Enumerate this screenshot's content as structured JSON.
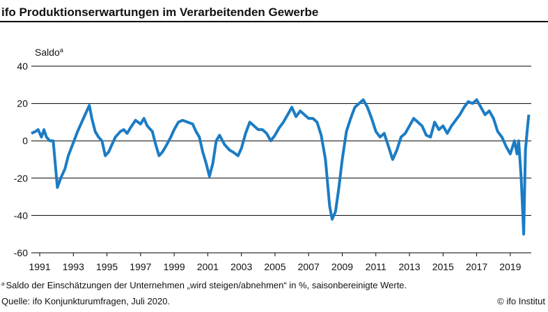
{
  "chart_data": {
    "type": "line",
    "title": "ifo Produktionserwartungen im Verarbeitenden Gewerbe",
    "y_label": "Saldo",
    "y_label_marker": "a",
    "footnote_marker": "a",
    "footnote": "Saldo der Einschätzungen der Unternehmen „wird steigen/abnehmen“ in %, saisonbereinigte Werte.",
    "source": "Quelle: ifo Konjunkturumfragen, Juli 2020.",
    "credit": "© ifo Institut",
    "xlim": [
      1991,
      2020.75
    ],
    "xticks": [
      {
        "value": 1991.5,
        "label": "1991"
      },
      {
        "value": 1993.5,
        "label": "1993"
      },
      {
        "value": 1995.5,
        "label": "1995"
      },
      {
        "value": 1997.5,
        "label": "1997"
      },
      {
        "value": 1999.5,
        "label": "1999"
      },
      {
        "value": 2001.5,
        "label": "2001"
      },
      {
        "value": 2003.5,
        "label": "2003"
      },
      {
        "value": 2005.5,
        "label": "2005"
      },
      {
        "value": 2007.5,
        "label": "2007"
      },
      {
        "value": 2009.5,
        "label": "2009"
      },
      {
        "value": 2011.5,
        "label": "2011"
      },
      {
        "value": 2013.5,
        "label": "2013"
      },
      {
        "value": 2015.5,
        "label": "2015"
      },
      {
        "value": 2017.5,
        "label": "2017"
      },
      {
        "value": 2019.5,
        "label": "2019"
      }
    ],
    "ylim": [
      -60,
      40
    ],
    "yticks": [
      40,
      20,
      0,
      -20,
      -40,
      -60
    ],
    "grid": true,
    "color": "#1b7cc4",
    "x": [
      1991.0,
      1991.25,
      1991.4,
      1991.6,
      1991.75,
      1991.9,
      1992.1,
      1992.3,
      1992.4,
      1992.55,
      1992.75,
      1993.0,
      1993.2,
      1993.5,
      1993.75,
      1994.0,
      1994.25,
      1994.45,
      1994.6,
      1994.8,
      1995.0,
      1995.2,
      1995.4,
      1995.6,
      1995.8,
      1996.0,
      1996.3,
      1996.5,
      1996.7,
      1996.9,
      1997.2,
      1997.5,
      1997.7,
      1997.9,
      1998.2,
      1998.4,
      1998.6,
      1998.8,
      1999.0,
      1999.3,
      1999.5,
      1999.75,
      2000.0,
      2000.3,
      2000.6,
      2000.8,
      2001.0,
      2001.2,
      2001.4,
      2001.6,
      2001.8,
      2002.0,
      2002.2,
      2002.5,
      2002.8,
      2003.0,
      2003.3,
      2003.5,
      2003.75,
      2004.0,
      2004.25,
      2004.5,
      2004.75,
      2005.0,
      2005.25,
      2005.5,
      2005.75,
      2006.0,
      2006.25,
      2006.5,
      2006.75,
      2007.0,
      2007.25,
      2007.5,
      2007.75,
      2008.0,
      2008.25,
      2008.5,
      2008.75,
      2008.9,
      2009.1,
      2009.3,
      2009.5,
      2009.75,
      2010.0,
      2010.25,
      2010.5,
      2010.75,
      2011.0,
      2011.25,
      2011.5,
      2011.75,
      2012.0,
      2012.25,
      2012.5,
      2012.75,
      2013.0,
      2013.25,
      2013.5,
      2013.75,
      2014.0,
      2014.25,
      2014.5,
      2014.75,
      2015.0,
      2015.25,
      2015.5,
      2015.75,
      2016.0,
      2016.25,
      2016.5,
      2016.75,
      2017.0,
      2017.25,
      2017.5,
      2017.75,
      2018.0,
      2018.25,
      2018.5,
      2018.75,
      2019.0,
      2019.25,
      2019.5,
      2019.75,
      2019.9,
      2020.0,
      2020.15,
      2020.3,
      2020.4,
      2020.5,
      2020.6
    ],
    "values": [
      4,
      5,
      6,
      2,
      6,
      2,
      0,
      0,
      -10,
      -25,
      -20,
      -15,
      -8,
      -1,
      5,
      10,
      15,
      19,
      12,
      5,
      2,
      0,
      -8,
      -6,
      -2,
      2,
      5,
      6,
      4,
      7,
      11,
      9,
      12,
      8,
      5,
      -2,
      -8,
      -6,
      -3,
      2,
      6,
      10,
      11,
      10,
      9,
      5,
      2,
      -6,
      -12,
      -19,
      -12,
      0,
      3,
      -2,
      -5,
      -6,
      -8,
      -4,
      4,
      10,
      8,
      6,
      6,
      4,
      0,
      3,
      7,
      10,
      14,
      18,
      13,
      16,
      14,
      12,
      12,
      10,
      3,
      -10,
      -35,
      -42,
      -38,
      -25,
      -10,
      5,
      12,
      18,
      20,
      22,
      18,
      12,
      5,
      2,
      4,
      -3,
      -10,
      -5,
      2,
      4,
      8,
      12,
      10,
      8,
      3,
      2,
      10,
      6,
      8,
      4,
      8,
      11,
      14,
      18,
      21,
      20,
      22,
      18,
      14,
      16,
      12,
      5,
      2,
      -3,
      -7,
      0,
      -7,
      0,
      -20,
      -50,
      -5,
      5,
      14
    ]
  }
}
